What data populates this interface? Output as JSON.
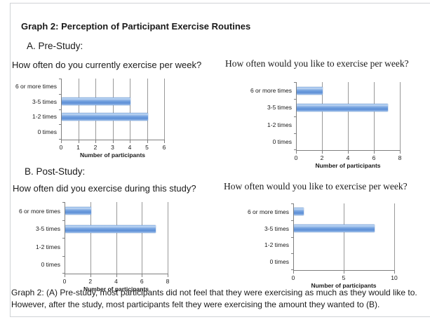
{
  "page": {
    "title": "Graph 2: Perception of Participant Exercise Routines",
    "section_a_label": "A. Pre-Study:",
    "section_b_label": "B. Post-Study:",
    "caption": "Graph 2: (A) Pre-study, most participants did not feel that they were exercising as much as they would like to. However, after the study, most participants felt they were exercising the amount they wanted to (B)."
  },
  "colors": {
    "bar_edge": "#7ea9e2",
    "bar_highlight": "#c3daf4",
    "bar_mid": "#76a3e0",
    "bar_deep": "#5d8fd6",
    "bar_low": "#9fc0ea",
    "grid_line": "#999999",
    "axis_line": "#7f7f7f",
    "frame_border": "#d0d3d6",
    "text": "#1a1a1a"
  },
  "chart_data": [
    {
      "id": "pre-study-current",
      "type": "bar",
      "orientation": "horizontal",
      "title": "How often do you currently exercise per week?",
      "title_font": "sans",
      "categories": [
        "6 or more times",
        "3-5 times",
        "1-2 times",
        "0 times"
      ],
      "values": [
        0,
        4,
        5,
        0
      ],
      "xlabel": "Number of participants",
      "ylabel": "",
      "xlim": [
        0,
        6
      ],
      "xticks": [
        0,
        1,
        2,
        3,
        4,
        5,
        6
      ],
      "grid": true,
      "legend": "none"
    },
    {
      "id": "pre-study-desired",
      "type": "bar",
      "orientation": "horizontal",
      "title": "How often would you like to exercise per week?",
      "title_font": "serif",
      "categories": [
        "6 or more times",
        "3-5 times",
        "1-2 times",
        "0 times"
      ],
      "values": [
        2,
        7,
        0,
        0
      ],
      "xlabel": "Number of participants",
      "ylabel": "",
      "xlim": [
        0,
        8
      ],
      "xticks": [
        0,
        2,
        4,
        6,
        8
      ],
      "grid": true,
      "legend": "none"
    },
    {
      "id": "post-study-during",
      "type": "bar",
      "orientation": "horizontal",
      "title": "How often did you exercise during this study?",
      "title_font": "sans",
      "categories": [
        "6 or more times",
        "3-5 times",
        "1-2 times",
        "0 times"
      ],
      "values": [
        2,
        7,
        0,
        0
      ],
      "xlabel": "Number of participants",
      "ylabel": "",
      "xlim": [
        0,
        8
      ],
      "xticks": [
        0,
        2,
        4,
        6,
        8
      ],
      "grid": true,
      "legend": "none"
    },
    {
      "id": "post-study-desired",
      "type": "bar",
      "orientation": "horizontal",
      "title": "How often would you like to exercise per week?",
      "title_font": "serif",
      "categories": [
        "6 or more times",
        "3-5 times",
        "1-2 times",
        "0 times"
      ],
      "values": [
        1,
        8,
        0,
        0
      ],
      "xlabel": "Number of participants",
      "ylabel": "",
      "xlim": [
        0,
        10
      ],
      "xticks": [
        0,
        5,
        10
      ],
      "grid": true,
      "legend": "none"
    }
  ]
}
